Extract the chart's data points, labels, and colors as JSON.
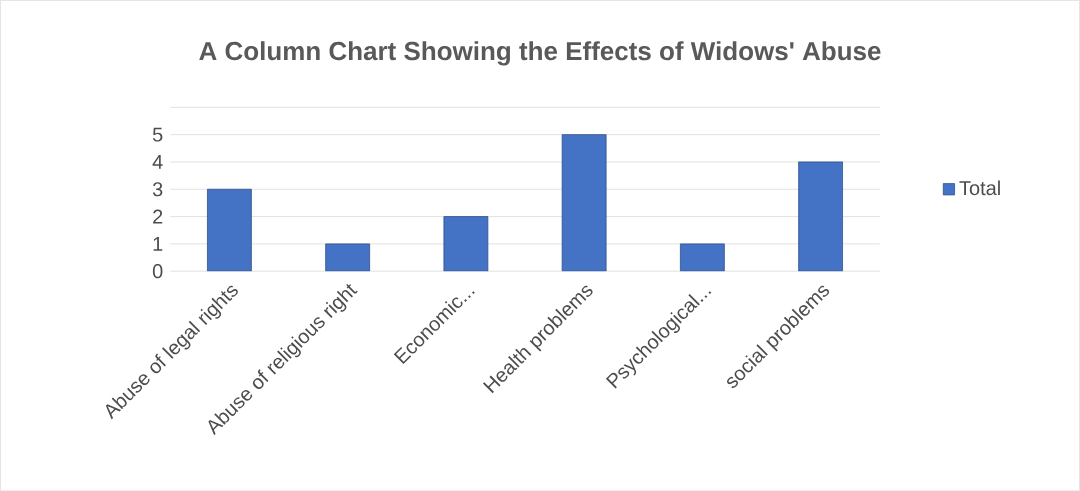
{
  "chart_data": {
    "type": "bar",
    "title": "A Column Chart Showing the Effects of Widows' Abuse",
    "categories": [
      "Abuse of legal rights",
      "Abuse of religious right",
      "Economic...",
      "Health problems",
      "Psychological...",
      "social problems"
    ],
    "series": [
      {
        "name": "Total",
        "color": "#4472c4",
        "values": [
          3,
          1,
          2,
          5,
          1,
          4
        ]
      }
    ],
    "ylim": [
      0,
      6
    ],
    "yticks": [
      0,
      1,
      2,
      3,
      4,
      5,
      {
        "value": 6,
        "label": null
      }
    ],
    "grid": "y",
    "legend": "right"
  }
}
